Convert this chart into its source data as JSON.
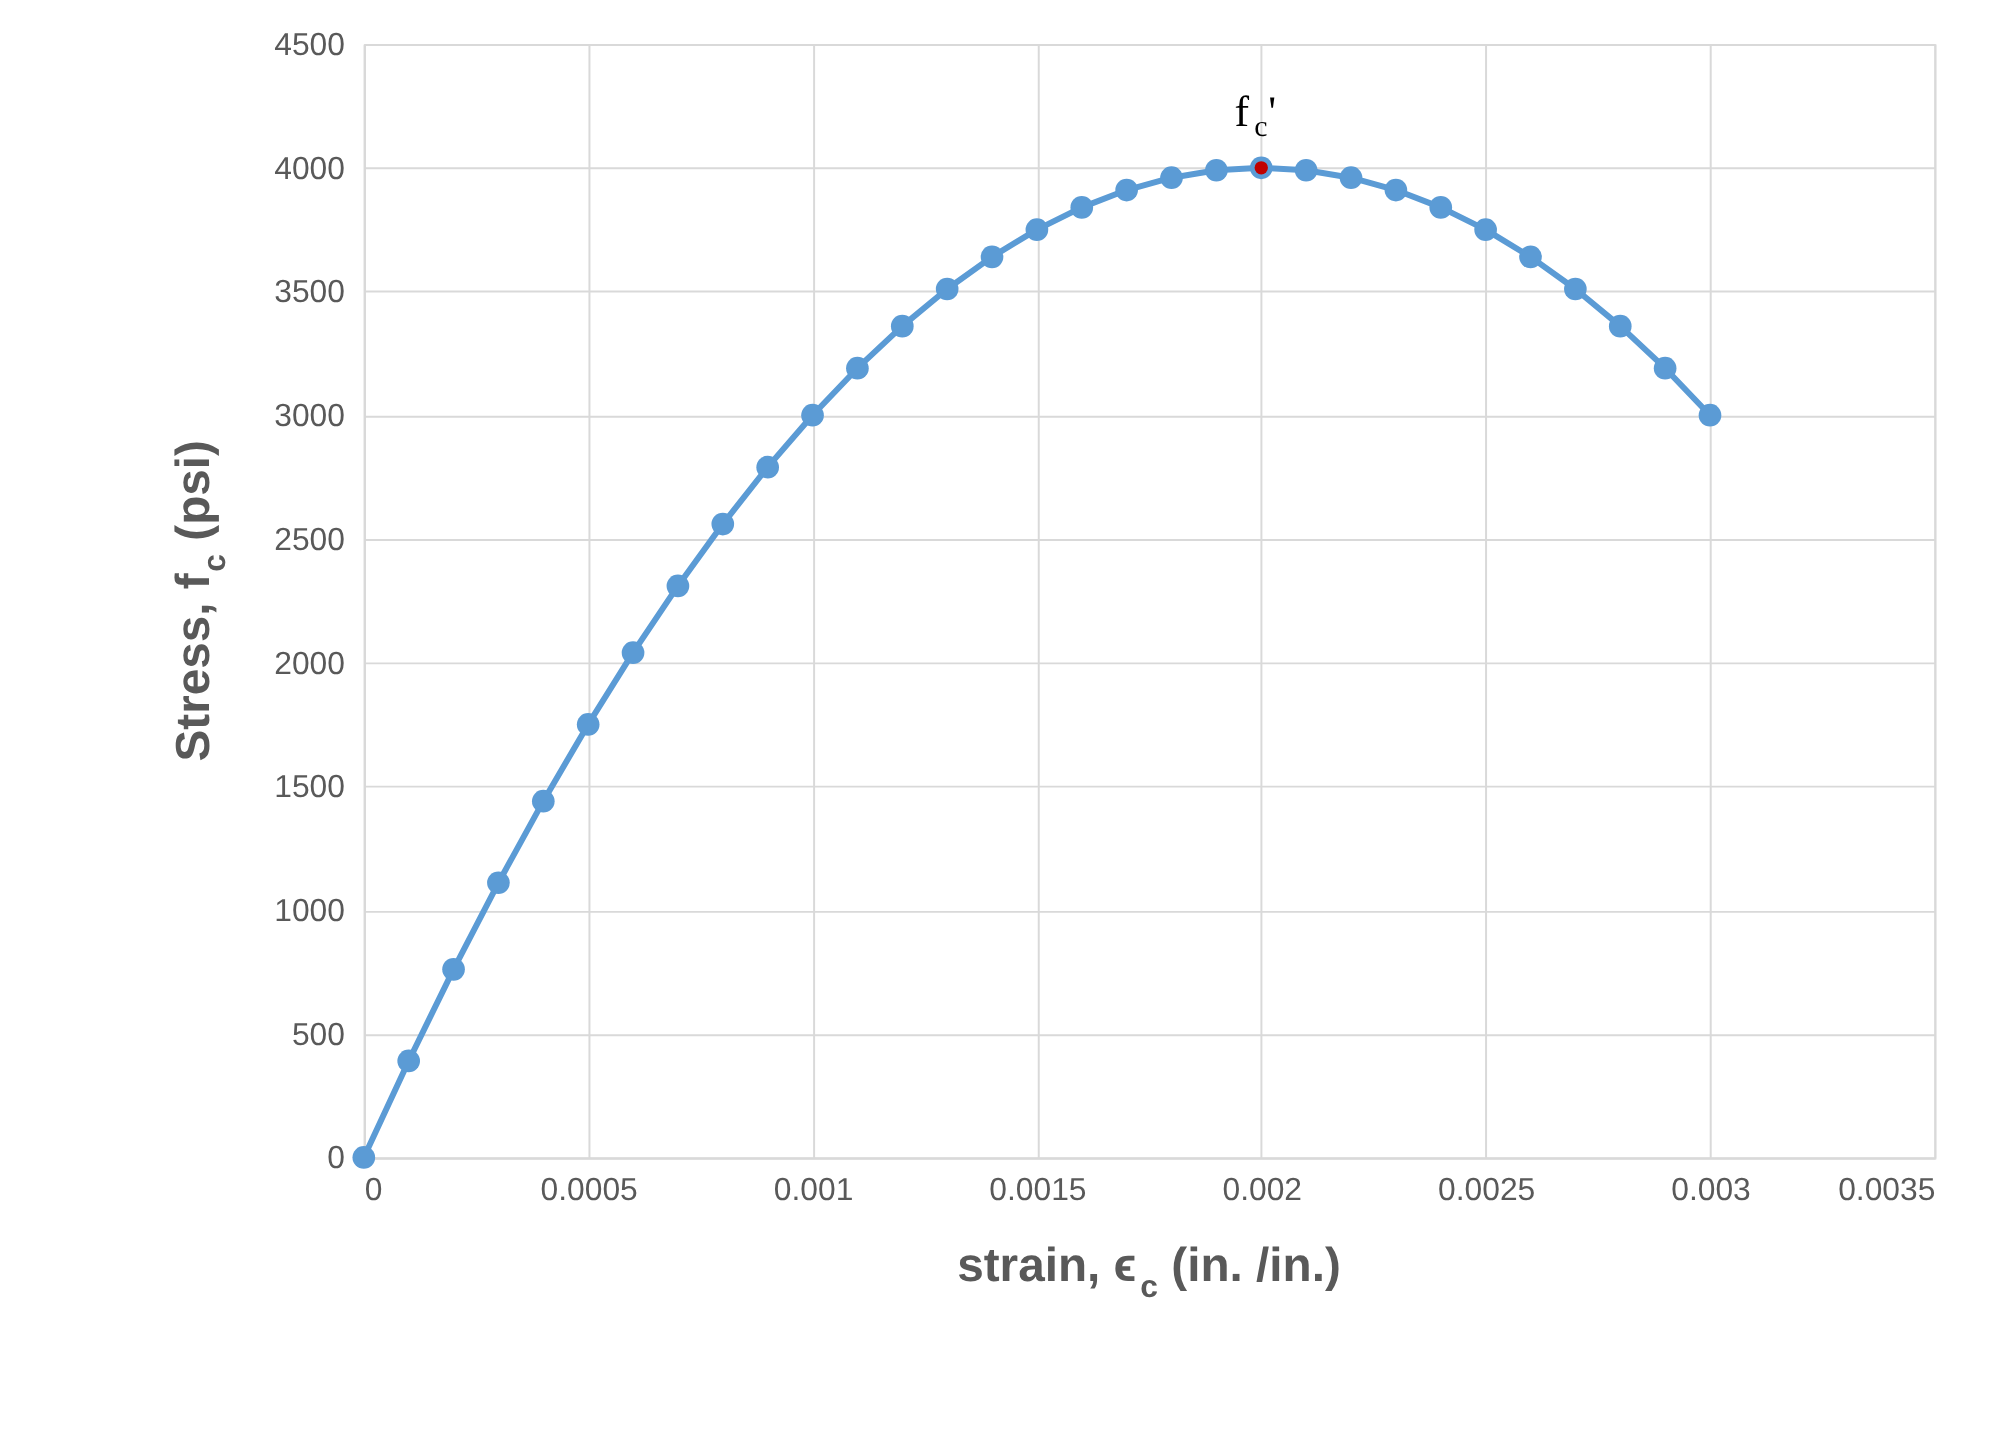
{
  "chart_data": {
    "type": "line",
    "xlabel": "strain, ϵ$_{c}$ (in. /in.)",
    "ylabel": "Stress, f$_{c}$ (psi)",
    "series": [
      {
        "type": "line",
        "color": "#5b9bd5",
        "marker": "circle",
        "x": [
          0,
          0.0001,
          0.0002,
          0.0003,
          0.0004,
          0.0005,
          0.0006,
          0.0007,
          0.0008,
          0.0009,
          0.001,
          0.0011,
          0.0012,
          0.0013,
          0.0014,
          0.0015,
          0.0016,
          0.0017,
          0.0018,
          0.0019,
          0.002,
          0.0021,
          0.0022,
          0.0023,
          0.0024,
          0.0025,
          0.0026,
          0.0027,
          0.0028,
          0.0029,
          0.003
        ],
        "values": [
          0,
          390,
          760,
          1110,
          1440,
          1750,
          2040,
          2310,
          2560,
          2790,
          3000,
          3190,
          3360,
          3510,
          3640,
          3750,
          3840,
          3910,
          3960,
          3990,
          4000,
          3990,
          3960,
          3910,
          3840,
          3750,
          3640,
          3510,
          3360,
          3190,
          3000
        ]
      },
      {
        "type": "scatter",
        "color": "#c00000",
        "marker": "circle",
        "x": [
          0.002
        ],
        "values": [
          4000
        ]
      }
    ],
    "annotations": [
      {
        "text": "f$_{c}$'",
        "x": 0.002,
        "y": 4000
      }
    ],
    "xlim": [
      0,
      0.0035
    ],
    "xticks": [
      0,
      0.0005,
      0.001,
      0.0015,
      0.002,
      0.0025,
      0.003,
      0.0035
    ],
    "ylim": [
      0,
      4500
    ],
    "yticks": [
      0,
      500,
      1000,
      1500,
      2000,
      2500,
      3000,
      3500,
      4000,
      4500
    ],
    "grid": true,
    "line_style": "solid",
    "legend": false
  }
}
